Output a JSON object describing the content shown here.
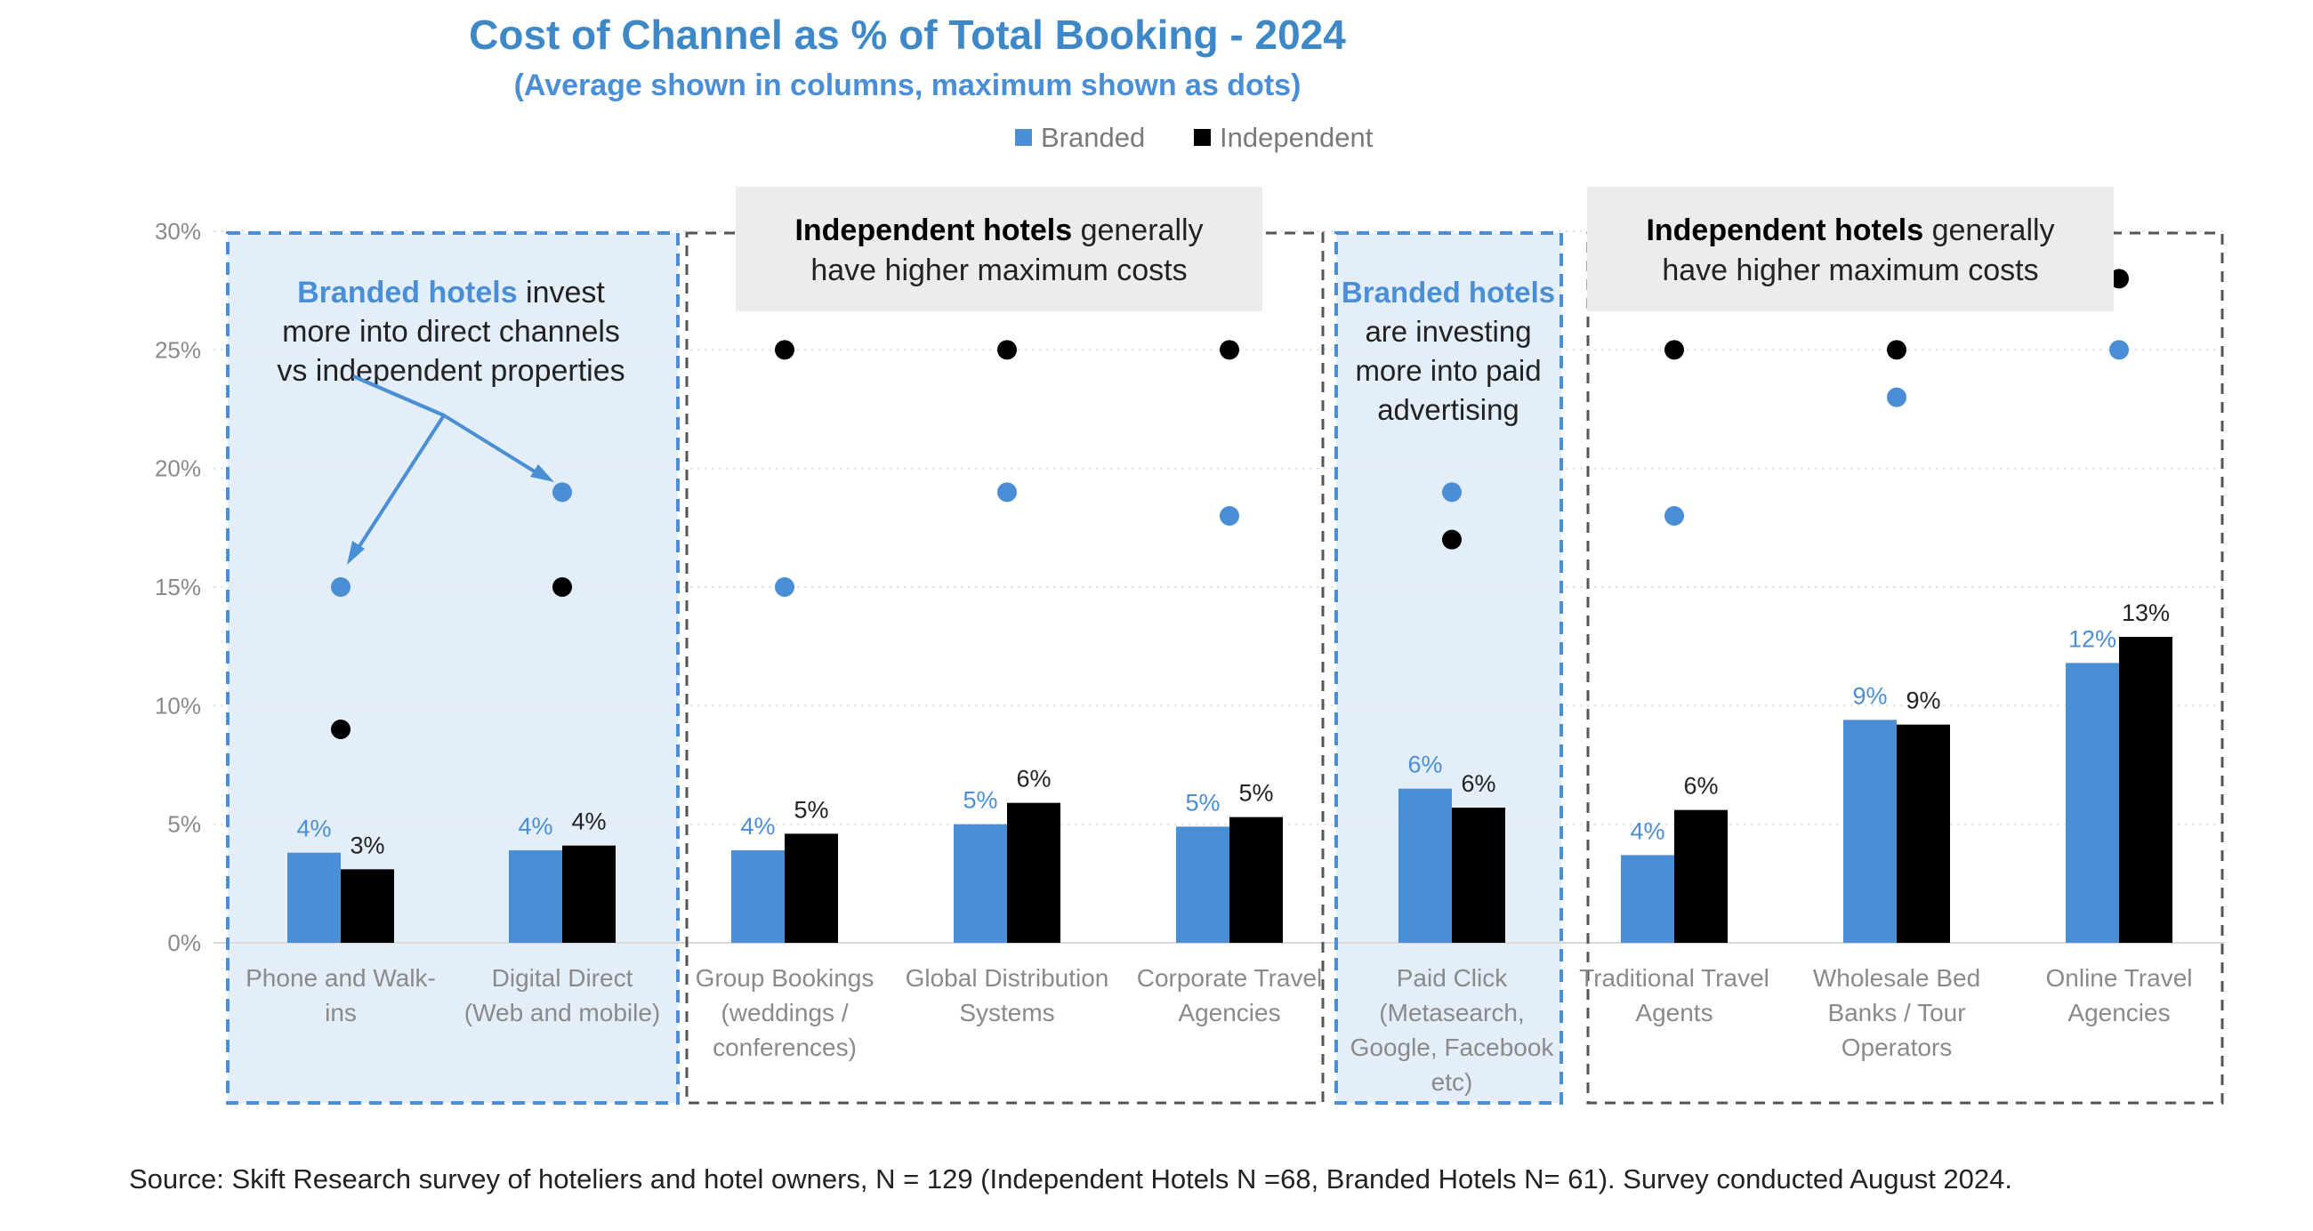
{
  "chart_data": {
    "type": "bar",
    "title": "Cost of Channel as % of Total Booking - 2024",
    "subtitle": "(Average shown in columns, maximum shown as dots)",
    "ylim": [
      0,
      30
    ],
    "yticks": [
      "0%",
      "5%",
      "10%",
      "15%",
      "20%",
      "25%",
      "30%"
    ],
    "legend": {
      "position": "top-center",
      "entries": [
        "Branded",
        "Independent"
      ]
    },
    "colors": {
      "branded": "#4a8fd6",
      "independent": "#000000",
      "title": "#3f88c8",
      "highlight_fill": "#e4eef9",
      "box_label_fill": "#ececec",
      "axis_text": "#8a8a8a"
    },
    "categories": [
      {
        "lines": [
          "Phone and Walk-",
          "ins"
        ]
      },
      {
        "lines": [
          "Digital Direct",
          "(Web and mobile)"
        ]
      },
      {
        "lines": [
          "Group Bookings",
          "(weddings /",
          "conferences)"
        ]
      },
      {
        "lines": [
          "Global Distribution",
          "Systems"
        ]
      },
      {
        "lines": [
          "Corporate Travel",
          "Agencies"
        ]
      },
      {
        "lines": [
          "Paid Click",
          "(Metasearch,",
          "Google, Facebook",
          "etc)"
        ]
      },
      {
        "lines": [
          "Traditional Travel",
          "Agents"
        ]
      },
      {
        "lines": [
          "Wholesale Bed",
          "Banks / Tour",
          "Operators"
        ]
      },
      {
        "lines": [
          "Online Travel",
          "Agencies"
        ]
      }
    ],
    "series": [
      {
        "name": "Branded",
        "values": [
          3.8,
          3.9,
          3.9,
          5.0,
          4.9,
          6.5,
          3.7,
          9.4,
          11.8
        ],
        "labels": [
          "4%",
          "4%",
          "4%",
          "5%",
          "5%",
          "6%",
          "4%",
          "9%",
          "12%"
        ],
        "max": [
          15,
          19,
          15,
          19,
          18,
          19,
          18,
          23,
          25
        ]
      },
      {
        "name": "Independent",
        "values": [
          3.1,
          4.1,
          4.6,
          5.9,
          5.3,
          5.7,
          5.6,
          9.2,
          12.9
        ],
        "labels": [
          "3%",
          "4%",
          "5%",
          "6%",
          "5%",
          "6%",
          "6%",
          "9%",
          "13%"
        ],
        "max": [
          9,
          15,
          25,
          25,
          25,
          17,
          25,
          25,
          28
        ]
      }
    ],
    "annotations": [
      {
        "bold": "Branded hotels",
        "rest": [
          " invest",
          "more into direct channels",
          "vs independent properties"
        ]
      },
      {
        "bold": "Independent hotels",
        "rest": [
          " generally",
          "have higher maximum costs"
        ]
      },
      {
        "bold": "Branded hotels",
        "rest": [
          "are investing",
          "more into paid",
          "advertising"
        ]
      },
      {
        "bold": "Independent hotels",
        "rest": [
          " generally",
          "have higher maximum costs"
        ]
      }
    ],
    "source": "Source: Skift Research survey of hoteliers and hotel owners, N = 129 (Independent Hotels N =68, Branded Hotels N= 61). Survey conducted August 2024."
  }
}
